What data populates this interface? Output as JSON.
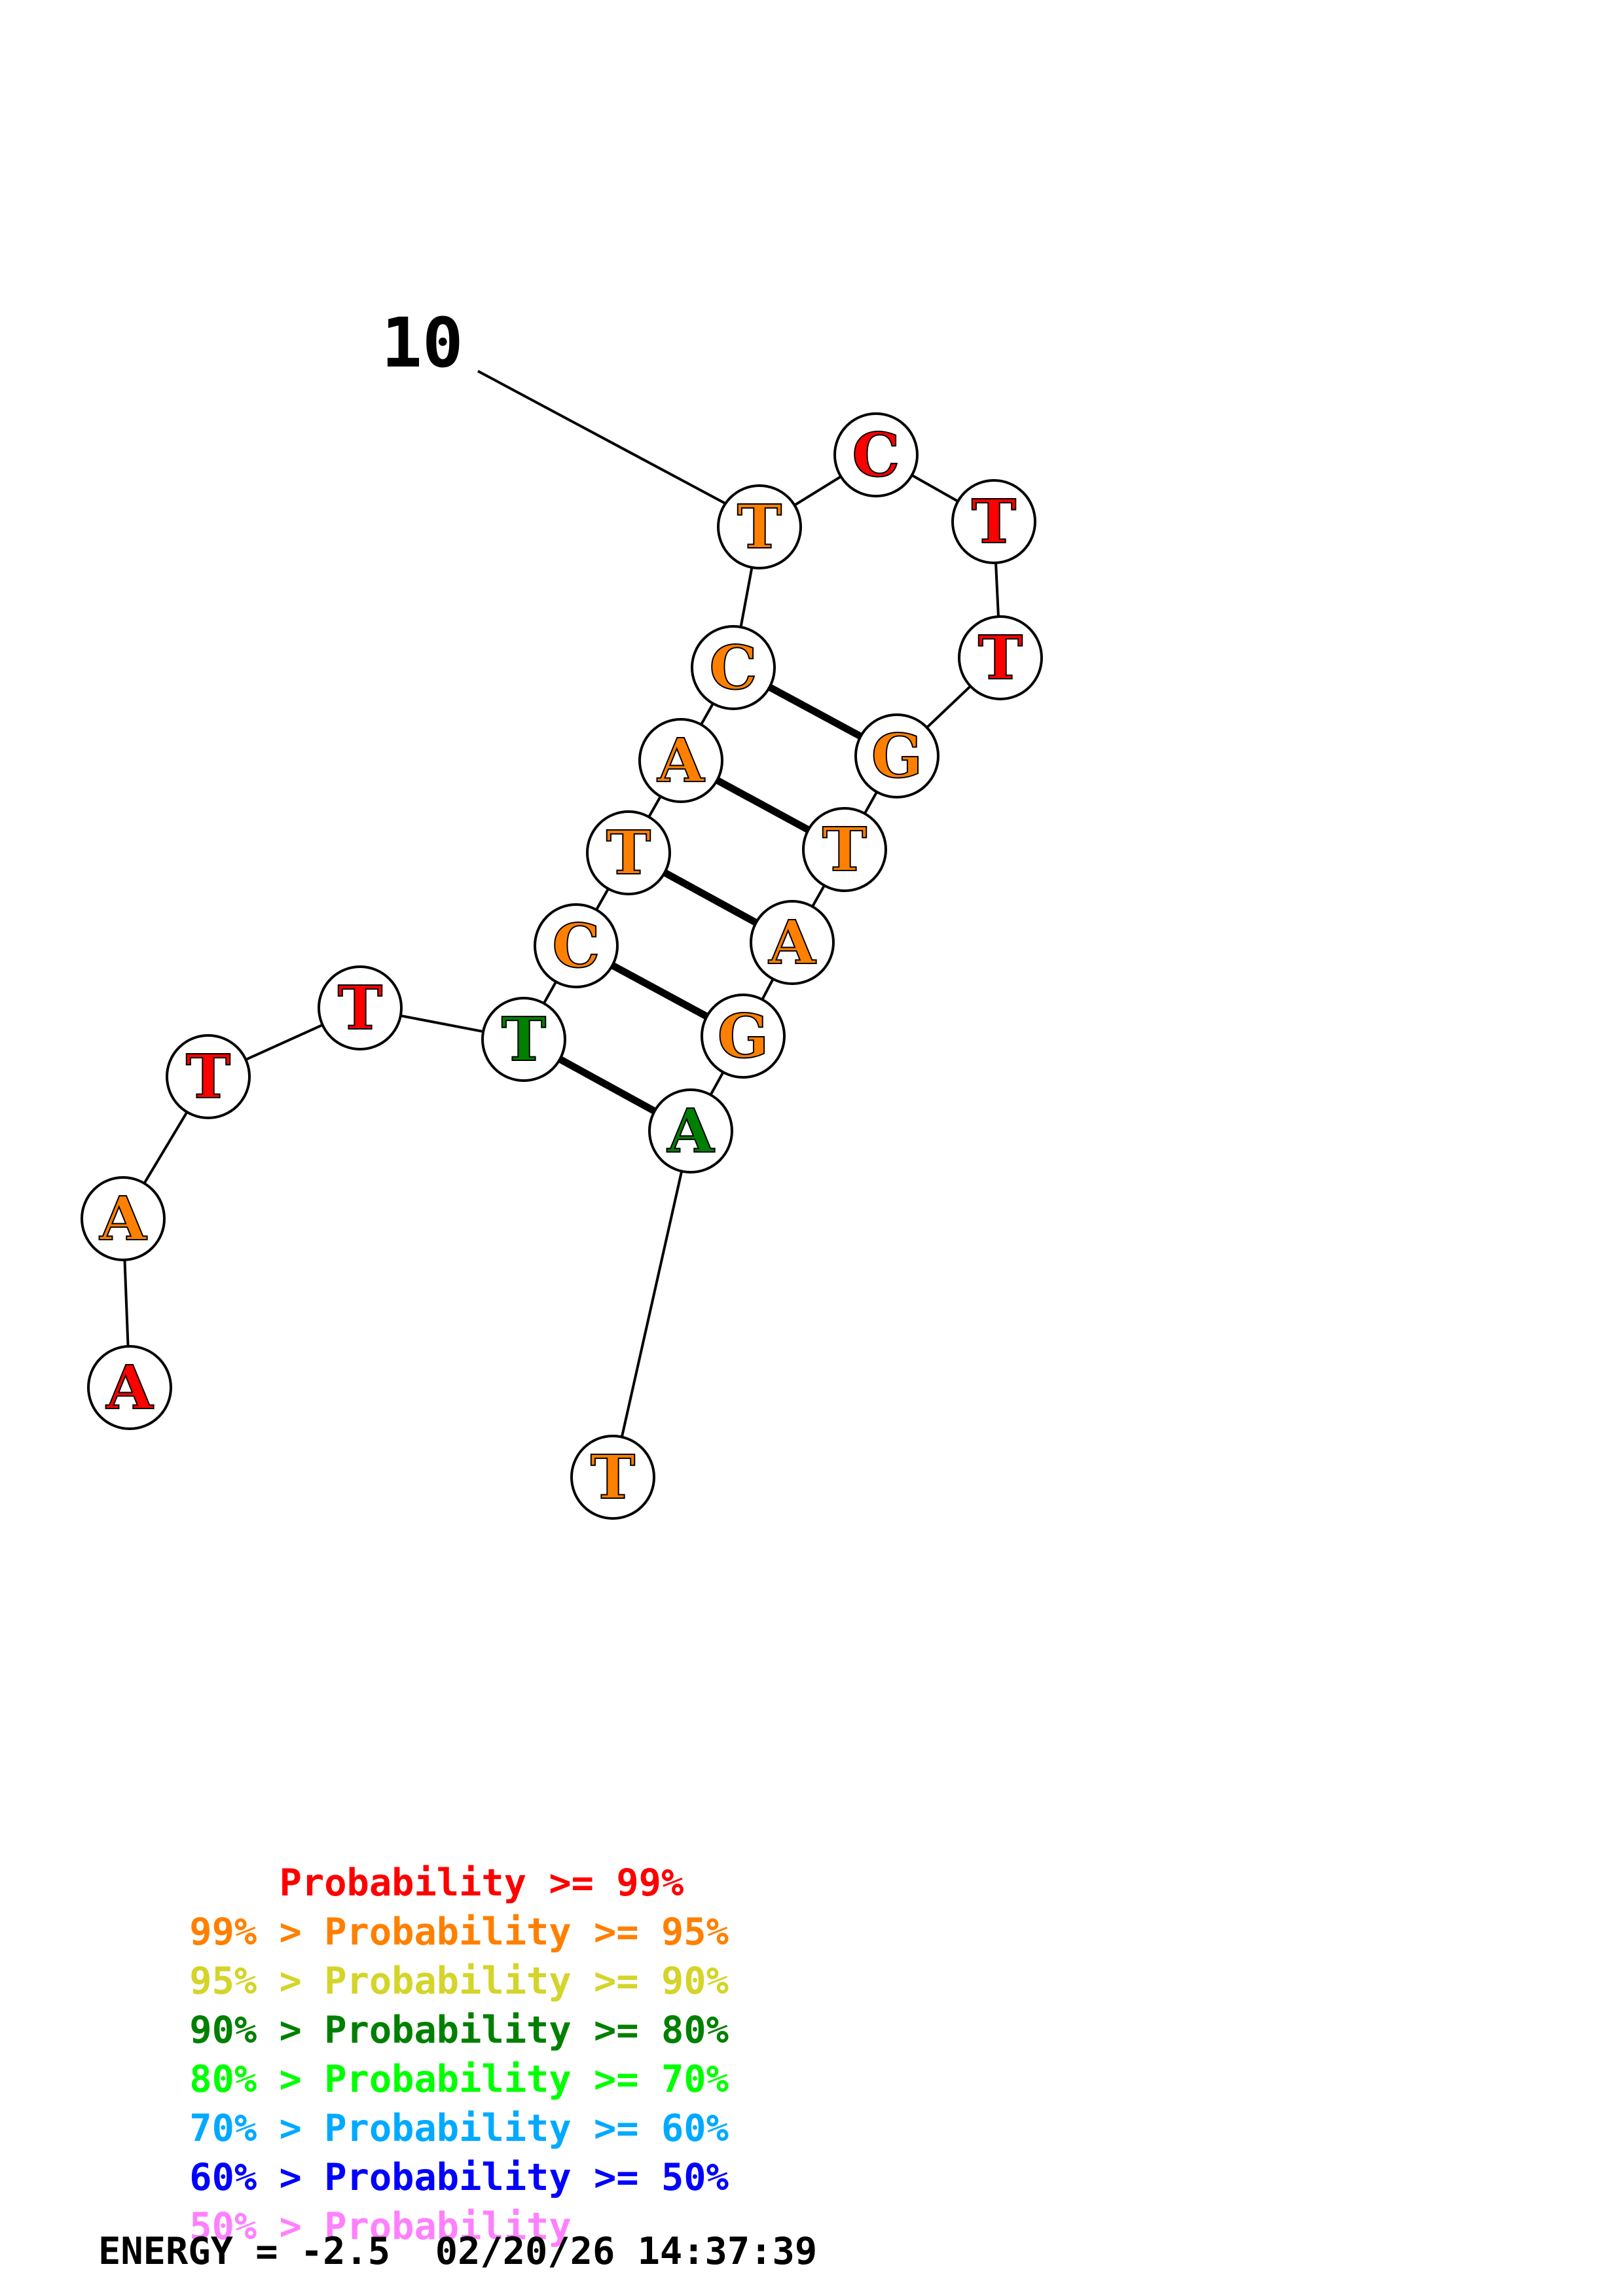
{
  "structure": {
    "index_label": "10",
    "nucleotides": [
      {
        "base": "A",
        "color": "#ff0000"
      },
      {
        "base": "A",
        "color": "#ff8000"
      },
      {
        "base": "T",
        "color": "#ff0000"
      },
      {
        "base": "T",
        "color": "#ff0000"
      },
      {
        "base": "T",
        "color": "#008000"
      },
      {
        "base": "C",
        "color": "#ff8000"
      },
      {
        "base": "T",
        "color": "#ff8000"
      },
      {
        "base": "A",
        "color": "#ff8000"
      },
      {
        "base": "C",
        "color": "#ff8000"
      },
      {
        "base": "T",
        "color": "#ff8000"
      },
      {
        "base": "C",
        "color": "#ff0000"
      },
      {
        "base": "T",
        "color": "#ff0000"
      },
      {
        "base": "T",
        "color": "#ff0000"
      },
      {
        "base": "G",
        "color": "#ff8000"
      },
      {
        "base": "T",
        "color": "#ff8000"
      },
      {
        "base": "A",
        "color": "#ff8000"
      },
      {
        "base": "G",
        "color": "#ff8000"
      },
      {
        "base": "A",
        "color": "#008000"
      },
      {
        "base": "T",
        "color": "#ff8000"
      }
    ],
    "pairs": [
      [
        5,
        18
      ],
      [
        6,
        17
      ],
      [
        7,
        16
      ],
      [
        8,
        15
      ],
      [
        9,
        14
      ]
    ]
  },
  "legend": [
    {
      "prefix": "    ",
      "range": "Probability >= 99%",
      "color": "#ff0000"
    },
    {
      "prefix": "99% > ",
      "range": "Probability >= 95%",
      "color": "#ff8000"
    },
    {
      "prefix": "95% > ",
      "range": "Probability >= 90%",
      "color": "#d4d42a"
    },
    {
      "prefix": "90% > ",
      "range": "Probability >= 80%",
      "color": "#008000"
    },
    {
      "prefix": "80% > ",
      "range": "Probability >= 70%",
      "color": "#00ff00"
    },
    {
      "prefix": "70% > ",
      "range": "Probability >= 60%",
      "color": "#00aaff"
    },
    {
      "prefix": "60% > ",
      "range": "Probability >= 50%",
      "color": "#0000ff"
    },
    {
      "prefix": "50% > ",
      "range": "Probability",
      "color": "#ff80ff"
    }
  ],
  "energy": "ENERGY = -2.5  02/20/26 14:37:39"
}
